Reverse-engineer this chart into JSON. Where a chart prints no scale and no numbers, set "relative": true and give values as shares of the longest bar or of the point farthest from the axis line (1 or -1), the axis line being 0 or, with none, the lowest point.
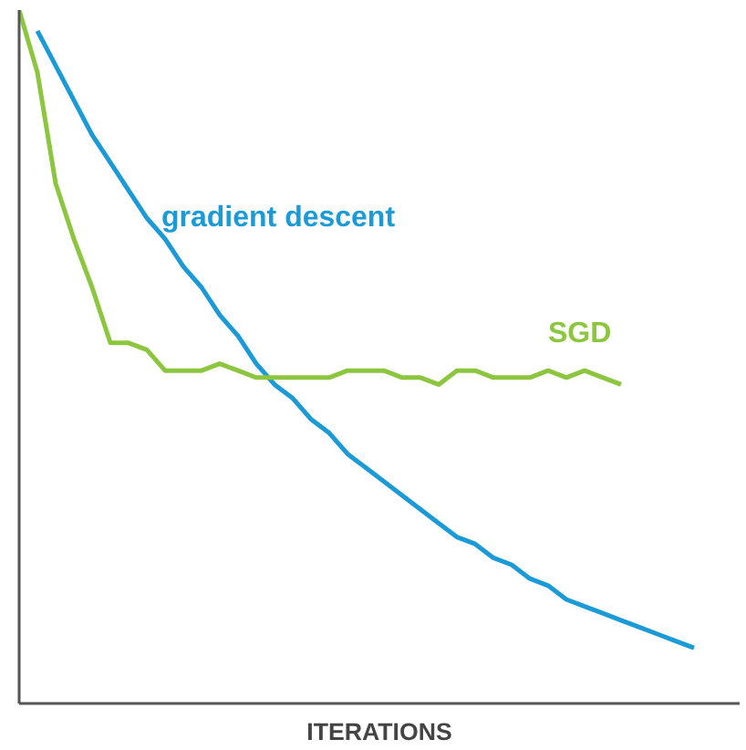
{
  "chart_data": {
    "type": "line",
    "relative": true,
    "xlabel": "ITERATIONS",
    "legend": false,
    "grid": false,
    "categories": [
      null,
      null,
      null,
      null,
      null,
      null,
      null,
      null,
      null,
      null,
      null,
      null,
      null,
      null,
      null,
      null,
      null,
      null,
      null,
      null,
      null,
      null,
      null,
      null,
      null,
      null,
      null,
      null,
      null,
      null,
      null,
      null,
      null,
      null,
      null,
      null,
      null,
      null,
      null,
      null
    ],
    "series": [
      {
        "name": "gradient descent",
        "color": "#1a9ad6",
        "values": [
          null,
          0.97,
          0.92,
          0.87,
          0.82,
          0.78,
          0.74,
          0.7,
          0.67,
          0.63,
          0.6,
          0.56,
          0.53,
          0.49,
          0.46,
          0.44,
          0.41,
          0.39,
          0.36,
          0.34,
          0.32,
          0.3,
          0.28,
          0.26,
          0.24,
          0.23,
          0.21,
          0.2,
          0.18,
          0.17,
          0.15,
          0.14,
          0.13,
          0.12,
          0.11,
          0.1,
          0.09,
          0.08,
          null,
          null
        ]
      },
      {
        "name": "SGD",
        "color": "#8cc63f",
        "values": [
          1.0,
          0.91,
          0.75,
          0.67,
          0.6,
          0.52,
          0.52,
          0.51,
          0.48,
          0.48,
          0.48,
          0.49,
          0.48,
          0.47,
          0.47,
          0.47,
          0.47,
          0.47,
          0.48,
          0.48,
          0.48,
          0.47,
          0.47,
          0.46,
          0.48,
          0.48,
          0.47,
          0.47,
          0.47,
          0.48,
          0.47,
          0.48,
          0.47,
          0.46,
          null,
          null,
          null,
          null,
          null,
          null
        ]
      }
    ]
  }
}
